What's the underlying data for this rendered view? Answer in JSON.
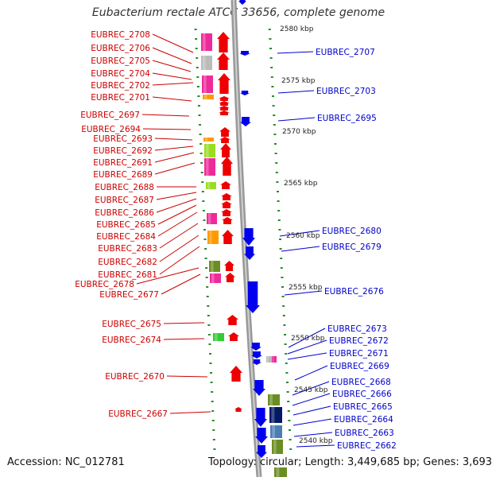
{
  "title": "Eubacterium rectale ATCC 33656, complete genome",
  "footer": {
    "accession": "Accession: NC_012781",
    "topology": "Topology: circular; Length: 3,449,685 bp; Genes: 3,693"
  },
  "scale_ticks": [
    "2580 kbp",
    "2575 kbp",
    "2570 kbp",
    "2565 kbp",
    "2560 kbp",
    "2555 kbp",
    "2550 kbp",
    "2545 kbp",
    "2540 kbp"
  ],
  "left_genes": [
    "EUBREC_2708",
    "EUBREC_2706",
    "EUBREC_2705",
    "EUBREC_2704",
    "EUBREC_2702",
    "EUBREC_2701",
    "EUBREC_2697",
    "EUBREC_2694",
    "EUBREC_2693",
    "EUBREC_2692",
    "EUBREC_2691",
    "EUBREC_2689",
    "EUBREC_2688",
    "EUBREC_2687",
    "EUBREC_2686",
    "EUBREC_2685",
    "EUBREC_2684",
    "EUBREC_2683",
    "EUBREC_2682",
    "EUBREC_2681",
    "EUBREC_2678",
    "EUBREC_2677",
    "EUBREC_2675",
    "EUBREC_2674",
    "EUBREC_2670",
    "EUBREC_2667"
  ],
  "right_genes": [
    "EUBREC_2707",
    "EUBREC_2703",
    "EUBREC_2695",
    "EUBREC_2680",
    "EUBREC_2679",
    "EUBREC_2676",
    "EUBREC_2673",
    "EUBREC_2672",
    "EUBREC_2671",
    "EUBREC_2669",
    "EUBREC_2668",
    "EUBREC_2666",
    "EUBREC_2665",
    "EUBREC_2664",
    "EUBREC_2663",
    "EUBREC_2662"
  ],
  "colors": {
    "forward_strand": "#ee0000",
    "reverse_strand": "#0000ee",
    "left_label": "#cc0000",
    "right_label": "#0000cc",
    "pink": "#ee2a9a",
    "grey": "#bbbbbb",
    "orange": "#ff9900",
    "lime": "#99dd22",
    "olive": "#6b8e23",
    "navy": "#001a66",
    "steel": "#4a7fb5",
    "green": "#33cc33",
    "backbone": "#999999",
    "scale": "#2a8a2a"
  }
}
